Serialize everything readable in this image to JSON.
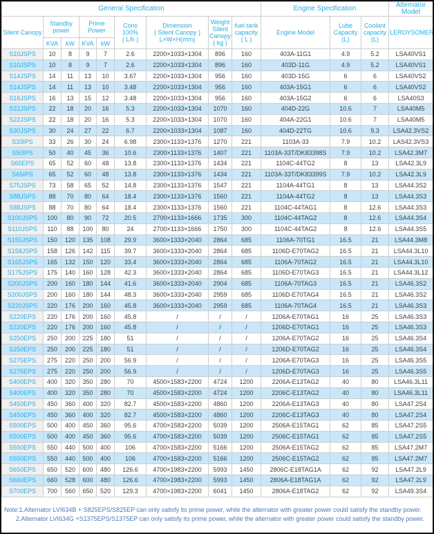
{
  "title_groups": {
    "general": "General Specification",
    "engine": "Engine Specification",
    "alternator": "Alternator Model"
  },
  "columns": {
    "silent_canopy": "Silent Canopy",
    "standby_power": "Standby power",
    "prime_power": "Prime Power",
    "kva1": "KVA",
    "kw1": "kW",
    "kva2": "KVA",
    "kw2": "kW",
    "cons": "Cons\n100%\n( L/h )",
    "dimension": "Dimension\n( Silent Canopy )\nL×W×H(mm)",
    "weight": "Weight\nSilent\nCanopy\n( kg )",
    "fuel_tank": "fuel tank\ncapacity\n( L )",
    "engine_model": "Engine Model",
    "lube": "Lube\nCapacity\n(L)",
    "coolant": "Coolant\ncapacity\n(L)",
    "leroysomer": "LEROYSOMER"
  },
  "rows": [
    [
      "S10JSPS",
      "10",
      "8",
      "9",
      "7",
      "2.6",
      "2200×1033×1304",
      "896",
      "160",
      "403A-11G1",
      "4.9",
      "5.2",
      "LSA40VS1"
    ],
    [
      "S10JSPS",
      "10",
      "8",
      "9",
      "7",
      "2.6",
      "2200×1033×1304",
      "896",
      "160",
      "403D-11G",
      "4.9",
      "5.2",
      "LSA40VS1"
    ],
    [
      "S14JSPS",
      "14",
      "11",
      "13",
      "10",
      "3.67",
      "2200×1033×1304",
      "956",
      "160",
      "403D-15G",
      "6",
      "6",
      "LSA40VS2"
    ],
    [
      "S14JSPS",
      "14",
      "11",
      "13",
      "10",
      "3.48",
      "2200×1033×1304",
      "956",
      "160",
      "403A-15G1",
      "6",
      "6",
      "LSA40VS2"
    ],
    [
      "S16JSPS",
      "16",
      "13",
      "15",
      "12",
      "3.48",
      "2200×1033×1304",
      "956",
      "160",
      "403A-15G2",
      "6",
      "6",
      "LSA40S3"
    ],
    [
      "S22JSPS",
      "22",
      "18",
      "20",
      "16",
      "5.3",
      "2200×1033×1304",
      "1070",
      "160",
      "404D-22G",
      "10.6",
      "7",
      "LSA40M5"
    ],
    [
      "S22JSPS",
      "22",
      "18",
      "20",
      "16",
      "5.3",
      "2200×1033×1304",
      "1070",
      "160",
      "404A-22G1",
      "10.6",
      "7",
      "LSA40M5"
    ],
    [
      "S30JSPS",
      "30",
      "24",
      "27",
      "22",
      "6.7",
      "2200×1033×1304",
      "1087",
      "160",
      "404D-22TG",
      "10.6",
      "9.3",
      "LSA42.3VS2"
    ],
    [
      "S33IPS",
      "33",
      "26",
      "30",
      "24",
      "6.98",
      "2300×1133×1376",
      "1270",
      "221",
      "1103A-33",
      "7.9",
      "10.2",
      "LAS42.3VS3"
    ],
    [
      "S50IPS",
      "50",
      "40",
      "45",
      "36",
      "10.6",
      "2300×1133×1376",
      "1407",
      "221",
      "1103A-33T/DK83398S",
      "7.9",
      "10.2",
      "LSA42.3M7"
    ],
    [
      "S65EPS",
      "65",
      "52",
      "60",
      "48",
      "13.8",
      "2300×1133×1376",
      "1434",
      "221",
      "1104C-44TG2",
      "8",
      "13",
      "LSA42.3L9"
    ],
    [
      "S65IPS",
      "65",
      "52",
      "60",
      "48",
      "13.8",
      "2300×1133×1376",
      "1434",
      "221",
      "1103A-33T/DK83399S",
      "7.9",
      "10.2",
      "LSA42.3L9"
    ],
    [
      "S75JSPS",
      "73",
      "58",
      "65",
      "52",
      "14.8",
      "2300×1133×1376",
      "1547",
      "221",
      "1104A-44TG1",
      "8",
      "13",
      "LSA44.3S2"
    ],
    [
      "S88JSPS",
      "88",
      "70",
      "80",
      "64",
      "18.4",
      "2300×1133×1376",
      "1560",
      "221",
      "1104A-44TG2",
      "8",
      "13",
      "LSA44.3S3"
    ],
    [
      "S88JSPS",
      "88",
      "70",
      "80",
      "64",
      "18.4",
      "2300×1133×1376",
      "1560",
      "221",
      "1104C-44TAG1",
      "8",
      "12.6",
      "LSA44.3S3"
    ],
    [
      "S100JSPS",
      "100",
      "80",
      "90",
      "72",
      "20.5",
      "2700×1133×1666",
      "1735",
      "300",
      "1104C-44TAG2",
      "8",
      "12.6",
      "LSA44.3S4"
    ],
    [
      "S110JSPS",
      "110",
      "88",
      "100",
      "80",
      "24",
      "2700×1133×1666",
      "1750",
      "300",
      "1104C-44TAG2",
      "8",
      "12.6",
      "LSA44.3S5"
    ],
    [
      "S150JSPS",
      "150",
      "120",
      "135",
      "108",
      "29.9",
      "3600×1333×2040",
      "2864",
      "685",
      "1106A-70TG1",
      "16.5",
      "21",
      "LSA44.3M8"
    ],
    [
      "S158JSPS",
      "158",
      "126",
      "142",
      "115",
      "39.7",
      "3600×1333×2040",
      "2864",
      "685",
      "1106D-E70TAG2",
      "16.5",
      "21",
      "LSA44.3L10"
    ],
    [
      "S165JSPS",
      "165",
      "132",
      "150",
      "120",
      "33.4",
      "3600×1333×2040",
      "2864",
      "685",
      "1106A-70TAG2",
      "16.5",
      "21",
      "LSA44.3L10"
    ],
    [
      "S175JSPS",
      "175",
      "140",
      "160",
      "128",
      "42.3",
      "3600×1333×2040",
      "2864",
      "685",
      "1106D-E70TAG3",
      "16.5",
      "21",
      "LSA44.3L12"
    ],
    [
      "S200JSPS",
      "200",
      "160",
      "180",
      "144",
      "41.6",
      "3600×1333×2040",
      "2904",
      "685",
      "1106A-70TAG3",
      "16.5",
      "21",
      "LSA46.3S2"
    ],
    [
      "S200JSPS",
      "200",
      "160",
      "180",
      "144",
      "48.3",
      "3600×1333×2040",
      "2959",
      "685",
      "1106D-E70TAG4",
      "16.5",
      "21",
      "LSA46.3S2"
    ],
    [
      "S220JSPS",
      "220",
      "176",
      "200",
      "160",
      "45.8",
      "3600×1333×2040",
      "2959",
      "685",
      "1106A-70TAG4",
      "16.5",
      "21",
      "LSA46.3S3"
    ],
    [
      "S220EPS",
      "220",
      "176",
      "200",
      "160",
      "45.8",
      "/",
      "/",
      "/",
      "1206A-E70TAG1",
      "16",
      "25",
      "LSA46.3S3"
    ],
    [
      "S220EPS",
      "220",
      "176",
      "200",
      "160",
      "45.8",
      "/",
      "/",
      "/",
      "1206D-E70TAG1",
      "16",
      "25",
      "LSA46.3S3"
    ],
    [
      "S250EPS",
      "250",
      "200",
      "225",
      "180",
      "51",
      "/",
      "/",
      "/",
      "1206A-E70TAG2",
      "16",
      "25",
      "LSA46.3S4"
    ],
    [
      "S250EPS",
      "250",
      "200",
      "225",
      "180",
      "51",
      "/",
      "/",
      "/",
      "1206D-E70TAG2",
      "16",
      "25",
      "LSA46.3S4"
    ],
    [
      "S275EPS",
      "275",
      "220",
      "250",
      "200",
      "56.9",
      "/",
      "/",
      "/",
      "1206A-E70TAG3",
      "16",
      "25",
      "LSA46.3S5"
    ],
    [
      "S275EPS",
      "275",
      "220",
      "250",
      "200",
      "56.9",
      "/",
      "/",
      "/",
      "1206D-E70TAG3",
      "16",
      "25",
      "LSA46.3S5"
    ],
    [
      "S400EPS",
      "400",
      "320",
      "350",
      "280",
      "70",
      "4500×1583×2200",
      "4724",
      "1200",
      "2206A-E13TAG2",
      "40",
      "80",
      "LSA46.3L11"
    ],
    [
      "S400EPS",
      "400",
      "320",
      "350",
      "280",
      "70",
      "4500×1583×2200",
      "4724",
      "1200",
      "2206C-E13TAG2",
      "40",
      "80",
      "LSA46.3L11"
    ],
    [
      "S450EPS",
      "450",
      "360",
      "400",
      "320",
      "82.7",
      "4500×1583×2200",
      "4860",
      "1200",
      "2206A-E13TAG3",
      "40",
      "80",
      "LSA47.2S4"
    ],
    [
      "S450EPS",
      "450",
      "360",
      "400",
      "320",
      "82.7",
      "4500×1583×2200",
      "4860",
      "1200",
      "2206C-E13TAG3",
      "40",
      "80",
      "LSA47.2S4"
    ],
    [
      "S500EPS",
      "500",
      "400",
      "450",
      "360",
      "95.6",
      "4700×1583×2200",
      "5039",
      "1200",
      "2506A-E15TAG1",
      "62",
      "85",
      "LSA47.2S5"
    ],
    [
      "S500EPS",
      "500",
      "400",
      "450",
      "360",
      "95.6",
      "4700×1583×2200",
      "5039",
      "1200",
      "2506C-E15TAG1",
      "62",
      "85",
      "LSA47.2S5"
    ],
    [
      "S550EPS",
      "550",
      "440",
      "500",
      "400",
      "106",
      "4700×1583×2200",
      "5166",
      "1200",
      "2506A-E15TAG2",
      "62",
      "85",
      "LSA47.2M7"
    ],
    [
      "S550EPS",
      "550",
      "440",
      "500",
      "400",
      "106",
      "4700×1583×2200",
      "5166",
      "1200",
      "2506C-E15TAG2",
      "62",
      "85",
      "LSA47.2M7"
    ],
    [
      "S650EPS",
      "650",
      "520",
      "600",
      "480",
      "126.6",
      "4700×1983×2200",
      "5993",
      "1450",
      "2806C-E18TAG1A",
      "62",
      "92",
      "LSA47.2L9"
    ],
    [
      "S660EPS",
      "660",
      "528",
      "600",
      "480",
      "126.6",
      "4700×1983×2200",
      "5993",
      "1450",
      "2806A-E18TAG1A",
      "62",
      "92",
      "LSA47.2L9"
    ],
    [
      "S700EPS",
      "700",
      "560",
      "650",
      "520",
      "129.3",
      "4700×1983×2200",
      "6041",
      "1450",
      "2806A-E18TAG2",
      "62",
      "92",
      "LSA49.3S4"
    ]
  ],
  "notes": {
    "line1": "Note:1.Alternator LVI634B + S825EPS/S825EP can only satisfy its prime power, while the alternator with greater power could satisfy the standby power.",
    "line2": "2.Alternator LVI634G +S1375EPS/S1375EP can only satisfy its prime power, while the alternator with greater power could satisfy the standby power."
  },
  "colors": {
    "accent_text": "#29ABE2",
    "row_alternate_bg": "#C9E7F9",
    "first_column_bg": "#F1F1F1",
    "grid_line": "#CCCCCC",
    "note_text": "#4A7AB5",
    "data_text": "#404040",
    "outer_frame": "#111111"
  }
}
